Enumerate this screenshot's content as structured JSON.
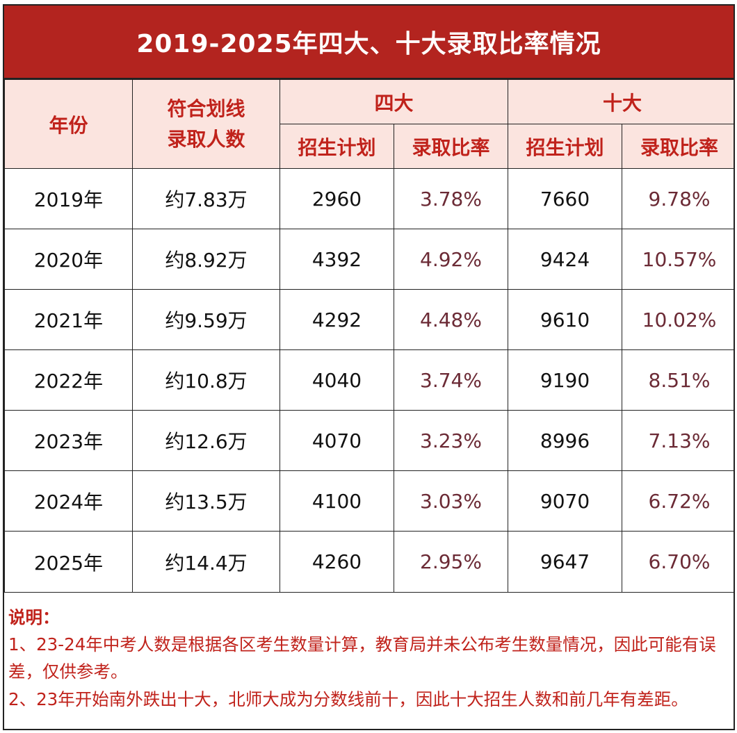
{
  "title": "2019-2025年四大、十大录取比率情况",
  "headers": {
    "year": "年份",
    "qualified_line1": "符合划线",
    "qualified_line2": "录取人数",
    "group1": "四大",
    "group2": "十大",
    "plan": "招生计划",
    "ratio": "录取比率"
  },
  "rows": [
    {
      "year": "2019年",
      "qualified": "约7.83万",
      "plan4": "2960",
      "ratio4": "3.78%",
      "plan10": "7660",
      "ratio10": "9.78%"
    },
    {
      "year": "2020年",
      "qualified": "约8.92万",
      "plan4": "4392",
      "ratio4": "4.92%",
      "plan10": "9424",
      "ratio10": "10.57%"
    },
    {
      "year": "2021年",
      "qualified": "约9.59万",
      "plan4": "4292",
      "ratio4": "4.48%",
      "plan10": "9610",
      "ratio10": "10.02%"
    },
    {
      "year": "2022年",
      "qualified": "约10.8万",
      "plan4": "4040",
      "ratio4": "3.74%",
      "plan10": "9190",
      "ratio10": "8.51%"
    },
    {
      "year": "2023年",
      "qualified": "约12.6万",
      "plan4": "4070",
      "ratio4": "3.23%",
      "plan10": "8996",
      "ratio10": "7.13%"
    },
    {
      "year": "2024年",
      "qualified": "约13.5万",
      "plan4": "4100",
      "ratio4": "3.03%",
      "plan10": "9070",
      "ratio10": "6.72%"
    },
    {
      "year": "2025年",
      "qualified": "约14.4万",
      "plan4": "4260",
      "ratio4": "2.95%",
      "plan10": "9647",
      "ratio10": "6.70%"
    }
  ],
  "notes": {
    "heading": "说明：",
    "line1": "1、23-24年中考人数是根据各区考生数量计算，教育局并未公布考生数量情况，因此可能有误差，仅供参考。",
    "line2": "2、23年开始南外跌出十大，北师大成为分数线前十，因此十大招生人数和前几年有差距。"
  },
  "colors": {
    "title_bg": "#b3241f",
    "header_bg": "#fbe4df",
    "header_text": "#c0221b",
    "ratio_text": "#6b2a35"
  }
}
